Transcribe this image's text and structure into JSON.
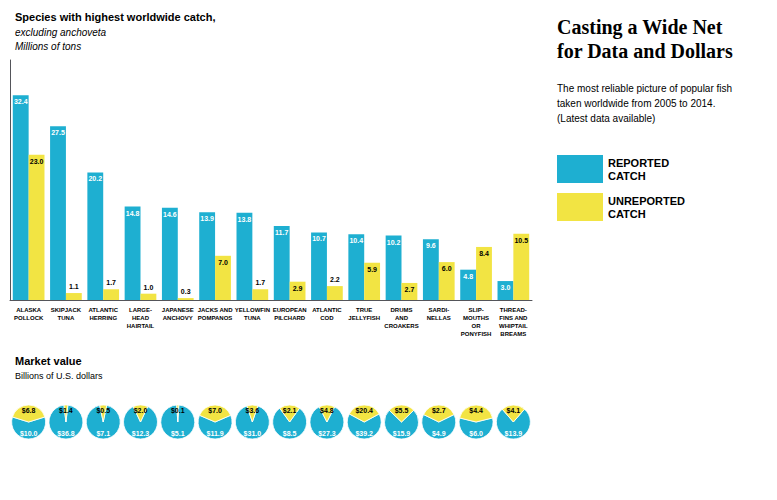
{
  "chart_data": [
    {
      "type": "bar",
      "title": "Casting a Wide Net\nfor Data and Dollars",
      "subtitle": "The most reliable picture of popular fish\ntaken worldwide from 2005 to 2014.\n(Latest data available)",
      "annotations": [
        "Species with highest worldwide catch,",
        "excluding anchoveta"
      ],
      "ylabel": "Millions of tons",
      "categories": [
        "ALASKA\nPOLLOCK",
        "SKIPJACK\nTUNA",
        "ATLANTIC\nHERRING",
        "LARGE-\nHEAD\nHAIRTAIL",
        "JAPANESE\nANCHOVY",
        "JACKS AND\nPOMPANOS",
        "YELLOWFIN\nTUNA",
        "EUROPEAN\nPILCHARD",
        "ATLANTIC\nCOD",
        "TRUE\nJELLYFISH",
        "DRUMS\nAND\nCROAKERS",
        "SARDI-\nNELLAS",
        "SLIP-\nMOUTHS\nOR\nPONYFISH",
        "THREAD-\nFINS AND\nWHIPTAIL\nBREAMS"
      ],
      "series": [
        {
          "name": "REPORTED\nCATCH",
          "color": "#1EAFD1",
          "values": [
            32.4,
            27.5,
            20.2,
            14.8,
            14.6,
            13.9,
            13.8,
            11.7,
            10.7,
            10.4,
            10.2,
            9.6,
            4.8,
            3.0
          ],
          "value_labels": [
            "32.4",
            "27.5",
            "20.2",
            "14.8",
            "14.6",
            "13.9",
            "13.8",
            "11.7",
            "10.7",
            "10.4",
            "10.2",
            "9.6",
            "4.8",
            "3.0"
          ]
        },
        {
          "name": "UNREPORTED\nCATCH",
          "color": "#F2E443",
          "values": [
            23.0,
            1.1,
            1.7,
            1.0,
            0.3,
            7.0,
            1.7,
            2.9,
            2.2,
            5.9,
            2.7,
            6.0,
            8.4,
            10.5
          ],
          "value_labels": [
            "23.0",
            "1.1",
            "1.7",
            "1.0",
            "0.3",
            "7.0",
            "1.7",
            "2.9",
            "2.2",
            "5.9",
            "2.7",
            "6.0",
            "8.4",
            "10.5"
          ]
        }
      ],
      "ylim": [
        0,
        38
      ],
      "grid": false,
      "legend": "right",
      "tick_labels": "x",
      "data_labels": true
    },
    {
      "type": "pie",
      "title": "Market value",
      "subtitle": "Billions of U.S. dollars",
      "series": [
        {
          "name": "REPORTED\nCATCH",
          "color": "#1EAFD1",
          "values": [
            10.0,
            36.8,
            7.1,
            12.3,
            5.1,
            11.9,
            31.0,
            8.5,
            27.3,
            39.2,
            15.9,
            4.9,
            6.0,
            13.9
          ],
          "value_labels": [
            "$10.0",
            "$36.8",
            "$7.1",
            "$12.3",
            "$5.1",
            "$11.9",
            "$31.0",
            "$8.5",
            "$27.3",
            "$39.2",
            "$15.9",
            "$4.9",
            "$6.0",
            "$13.9"
          ]
        },
        {
          "name": "UNREPORTED\nCATCH",
          "color": "#F2E443",
          "values": [
            6.8,
            1.4,
            0.5,
            2.0,
            0.1,
            7.0,
            3.6,
            2.1,
            4.8,
            20.4,
            5.5,
            2.7,
            4.4,
            4.1
          ],
          "value_labels": [
            "$6.8",
            "$1.4",
            "$0.5",
            "$2.0",
            "$0.1",
            "$7.0",
            "$3.6",
            "$2.1",
            "$4.8",
            "$20.4",
            "$5.5",
            "$2.7",
            "$4.4",
            "$4.1"
          ]
        }
      ],
      "data_labels": true
    }
  ]
}
